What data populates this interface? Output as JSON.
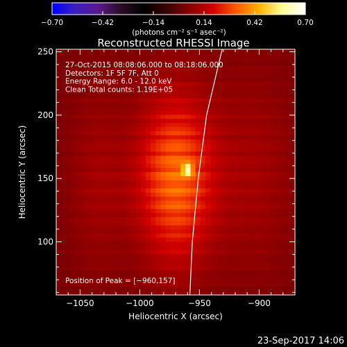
{
  "colorbar": {
    "ticks": [
      "−0.70",
      "−0.42",
      "−0.14",
      "0.14",
      "0.42",
      "0.70"
    ],
    "label": "(photons cm⁻² s⁻¹ asec⁻²)",
    "range": [
      -0.7,
      0.7
    ],
    "palette": [
      "#0000ff",
      "#3a1fbf",
      "#5a1a8a",
      "#2a0c24",
      "#000000",
      "#3a0404",
      "#8a0000",
      "#d40000",
      "#ff5a00",
      "#ffb400",
      "#ffff9a",
      "#ffffff"
    ]
  },
  "chart_data": {
    "type": "heatmap",
    "title": "Reconstructed RHESSI Image",
    "xlabel": "Heliocentric X (arcsec)",
    "ylabel": "Heliocentric Y (arcsec)",
    "xlim": [
      -1070,
      -870
    ],
    "ylim": [
      58,
      252
    ],
    "xticks": [
      -1050,
      -1000,
      -950,
      -900
    ],
    "xtick_labels": [
      "−1050",
      "−1000",
      "−950",
      "−900"
    ],
    "yticks": [
      100,
      150,
      200,
      250
    ],
    "ytick_labels": [
      "100",
      "150",
      "200",
      "250"
    ],
    "info_lines": [
      "27-Oct-2015 08:08:06.000 to 08:18:06.000",
      "Detectors: 1F 5F 7F, Att 0",
      "Energy Range: 6.0 - 12.0 keV",
      "Clean    Total counts: 1.19E+05"
    ],
    "peak_label": "Position of Peak = [−960,157]",
    "peak": {
      "x": -960,
      "y": 157
    },
    "limb": [
      {
        "x": -958,
        "y": 58
      },
      {
        "x": -956,
        "y": 100
      },
      {
        "x": -951,
        "y": 150
      },
      {
        "x": -944,
        "y": 200
      },
      {
        "x": -931,
        "y": 252
      }
    ],
    "sources": [
      {
        "x": -970,
        "y": 150,
        "sx": 22,
        "sy": 46,
        "amp": 0.3
      },
      {
        "x": -960,
        "y": 157,
        "sx": 3,
        "sy": 3,
        "amp": 0.42
      },
      {
        "x": -1035,
        "y": 150,
        "sx": 18,
        "sy": 55,
        "amp": 0.07
      },
      {
        "x": -905,
        "y": 155,
        "sx": 25,
        "sy": 60,
        "amp": 0.07
      }
    ],
    "background": 0.035
  },
  "footer": {
    "timestamp": "23-Sep-2017 14:06"
  }
}
